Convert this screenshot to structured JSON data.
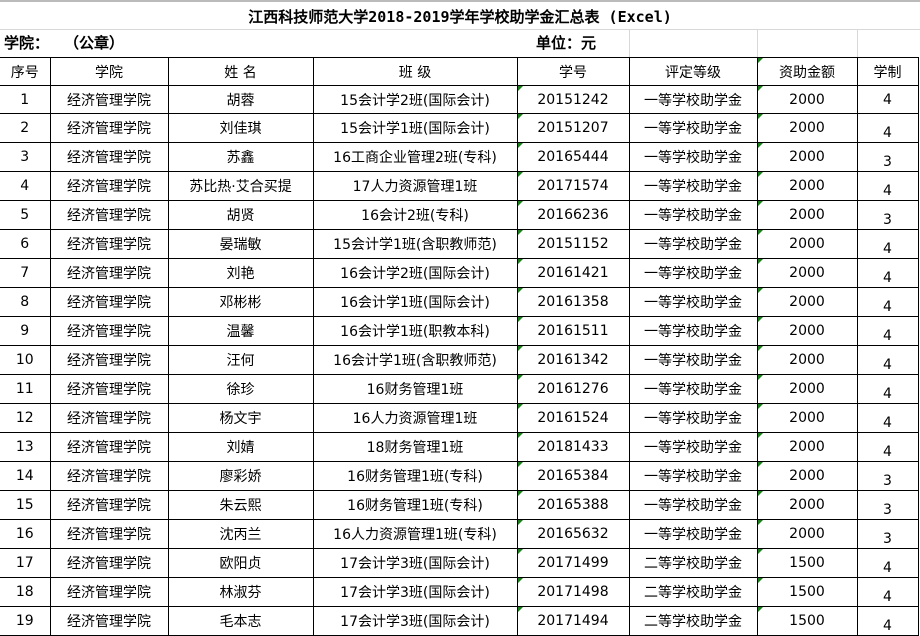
{
  "title": "江西科技师范大学2018-2019学年学校助学金汇总表 (Excel)",
  "info": {
    "college_label": "学院：",
    "seal": "（公章）",
    "unit": "单位：元"
  },
  "columns": [
    "序号",
    "学院",
    "姓 名",
    "班 级",
    "学号",
    "评定等级",
    "资助金额",
    "学制"
  ],
  "rows": [
    [
      "1",
      "经济管理学院",
      "胡蓉",
      "15会计学2班(国际会计)",
      "20151242",
      "一等学校助学金",
      "2000",
      "4"
    ],
    [
      "2",
      "经济管理学院",
      "刘佳琪",
      "15会计学1班(国际会计)",
      "20151207",
      "一等学校助学金",
      "2000",
      "4"
    ],
    [
      "3",
      "经济管理学院",
      "苏鑫",
      "16工商企业管理2班(专科)",
      "20165444",
      "一等学校助学金",
      "2000",
      "3"
    ],
    [
      "4",
      "经济管理学院",
      "苏比热·艾合买提",
      "17人力资源管理1班",
      "20171574",
      "一等学校助学金",
      "2000",
      "4"
    ],
    [
      "5",
      "经济管理学院",
      "胡贤",
      "16会计2班(专科)",
      "20166236",
      "一等学校助学金",
      "2000",
      "3"
    ],
    [
      "6",
      "经济管理学院",
      "晏瑞敏",
      "15会计学1班(含职教师范)",
      "20151152",
      "一等学校助学金",
      "2000",
      "4"
    ],
    [
      "7",
      "经济管理学院",
      "刘艳",
      "16会计学2班(国际会计)",
      "20161421",
      "一等学校助学金",
      "2000",
      "4"
    ],
    [
      "8",
      "经济管理学院",
      "邓彬彬",
      "16会计学1班(国际会计)",
      "20161358",
      "一等学校助学金",
      "2000",
      "4"
    ],
    [
      "9",
      "经济管理学院",
      "温馨",
      "16会计学1班(职教本科)",
      "20161511",
      "一等学校助学金",
      "2000",
      "4"
    ],
    [
      "10",
      "经济管理学院",
      "汪何",
      "16会计学1班(含职教师范)",
      "20161342",
      "一等学校助学金",
      "2000",
      "4"
    ],
    [
      "11",
      "经济管理学院",
      "徐珍",
      "16财务管理1班",
      "20161276",
      "一等学校助学金",
      "2000",
      "4"
    ],
    [
      "12",
      "经济管理学院",
      "杨文宇",
      "16人力资源管理1班",
      "20161524",
      "一等学校助学金",
      "2000",
      "4"
    ],
    [
      "13",
      "经济管理学院",
      "刘婧",
      "18财务管理1班",
      "20181433",
      "一等学校助学金",
      "2000",
      "4"
    ],
    [
      "14",
      "经济管理学院",
      "廖彩娇",
      "16财务管理1班(专科)",
      "20165384",
      "一等学校助学金",
      "2000",
      "3"
    ],
    [
      "15",
      "经济管理学院",
      "朱云熙",
      "16财务管理1班(专科)",
      "20165388",
      "一等学校助学金",
      "2000",
      "3"
    ],
    [
      "16",
      "经济管理学院",
      "沈丙兰",
      "16人力资源管理1班(专科)",
      "20165632",
      "一等学校助学金",
      "2000",
      "3"
    ],
    [
      "17",
      "经济管理学院",
      "欧阳贞",
      "17会计学3班(国际会计)",
      "20171499",
      "二等学校助学金",
      "1500",
      "4"
    ],
    [
      "18",
      "经济管理学院",
      "林淑芬",
      "17会计学3班(国际会计)",
      "20171498",
      "二等学校助学金",
      "1500",
      "4"
    ],
    [
      "19",
      "经济管理学院",
      "毛本志",
      "17会计学3班(国际会计)",
      "20171494",
      "二等学校助学金",
      "1500",
      "4"
    ]
  ]
}
